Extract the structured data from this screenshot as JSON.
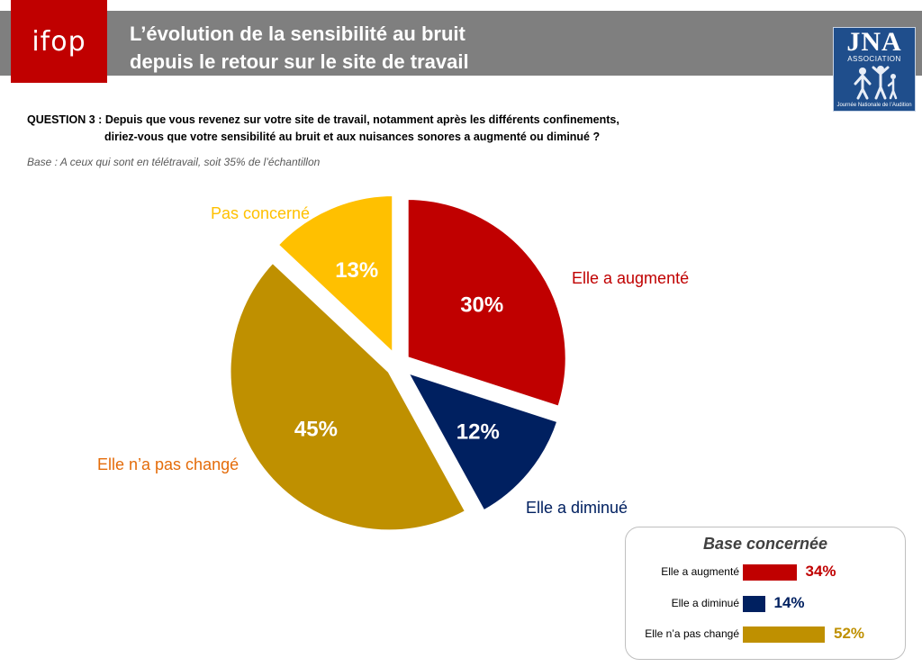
{
  "header": {
    "logo_text": "ifop",
    "title_line1": "L’évolution de la sensibilité au bruit",
    "title_line2": "depuis le retour  sur le site de travail",
    "partner_logo_letters": "JNA",
    "partner_logo_sub": "ASSOCIATION",
    "partner_logo_caption": "Journée Nationale de l’Audition"
  },
  "question": {
    "line1": "QUESTION 3 :  Depuis que vous revenez sur votre site de travail,  notamment après les différents confinements,",
    "line2": "diriez-vous que votre sensibilité au bruit et aux nuisances sonores a augmenté ou diminué ?",
    "base": "Base : A ceux qui sont en télétravail, soit 35% de l’échantillon"
  },
  "chart_data": [
    {
      "type": "pie",
      "title": "",
      "slices": [
        {
          "label": "Elle a augmenté",
          "value": 30,
          "value_label": "30%",
          "color": "#c00000",
          "label_color": "#c00000"
        },
        {
          "label": "Elle a diminué",
          "value": 12,
          "value_label": "12%",
          "color": "#002060",
          "label_color": "#002060"
        },
        {
          "label": "Elle n’a pas changé",
          "value": 45,
          "value_label": "45%",
          "color": "#bf9000",
          "label_color": "#e46c0a"
        },
        {
          "label": "Pas concerné",
          "value": 13,
          "value_label": "13%",
          "color": "#ffc000",
          "label_color": "#ffc000"
        }
      ],
      "exploded": true,
      "start_angle_deg": 0
    },
    {
      "type": "bar",
      "title": "Base concernée",
      "orientation": "horizontal",
      "categories": [
        "Elle a augmenté",
        "Elle a diminué",
        "Elle n’a pas changé"
      ],
      "values": [
        34,
        14,
        52
      ],
      "value_labels": [
        "34%",
        "14%",
        "52%"
      ],
      "colors": [
        "#c00000",
        "#002060",
        "#bf9000"
      ]
    }
  ]
}
